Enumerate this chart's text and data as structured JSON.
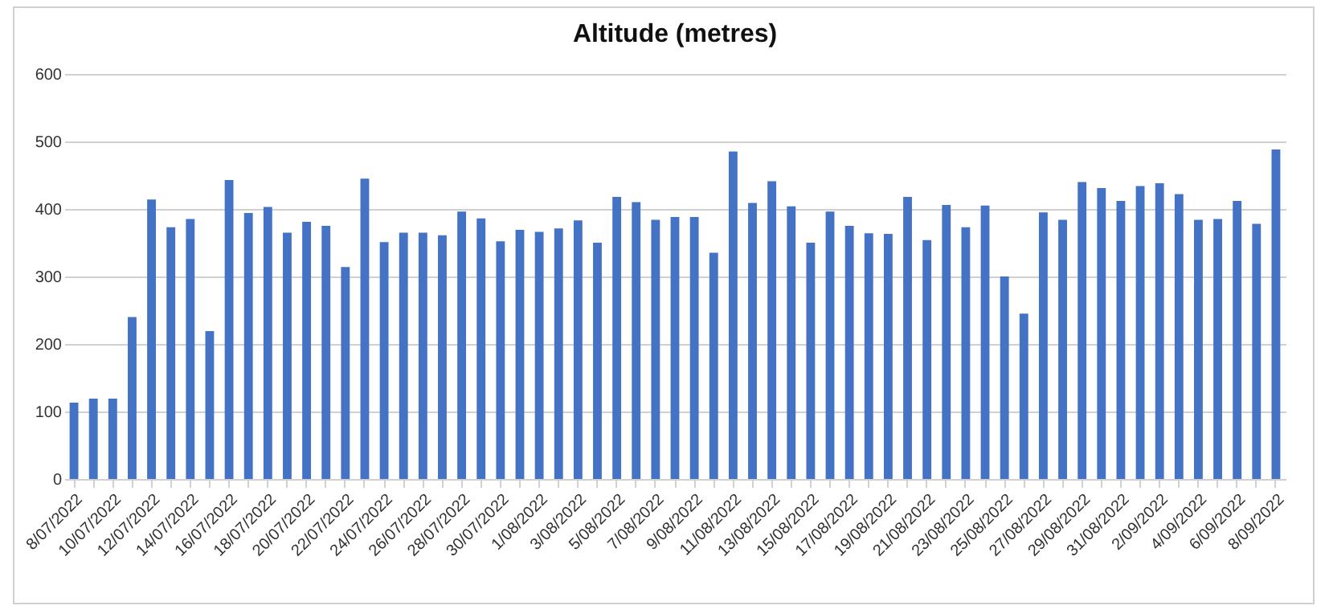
{
  "chart_data": {
    "type": "bar",
    "title": "Altitude (metres)",
    "categories": [
      "8/07/2022",
      null,
      "10/07/2022",
      null,
      "12/07/2022",
      null,
      "14/07/2022",
      null,
      "16/07/2022",
      null,
      "18/07/2022",
      null,
      "20/07/2022",
      null,
      "22/07/2022",
      null,
      "24/07/2022",
      null,
      "26/07/2022",
      null,
      "28/07/2022",
      null,
      "30/07/2022",
      null,
      "1/08/2022",
      null,
      "3/08/2022",
      null,
      "5/08/2022",
      null,
      "7/08/2022",
      null,
      "9/08/2022",
      null,
      "11/08/2022",
      null,
      "13/08/2022",
      null,
      "15/08/2022",
      null,
      "17/08/2022",
      null,
      "19/08/2022",
      null,
      "21/08/2022",
      null,
      "23/08/2022",
      null,
      "25/08/2022",
      null,
      "27/08/2022",
      null,
      "29/08/2022",
      null,
      "31/08/2022",
      null,
      "2/09/2022",
      null,
      "4/09/2022",
      null,
      "6/09/2022",
      null,
      "8/09/2022"
    ],
    "values": [
      113,
      119,
      119,
      240,
      414,
      373,
      385,
      219,
      443,
      394,
      403,
      365,
      381,
      375,
      314,
      445,
      351,
      365,
      365,
      361,
      396,
      386,
      352,
      369,
      366,
      371,
      383,
      350,
      418,
      410,
      384,
      388,
      388,
      335,
      485,
      409,
      441,
      404,
      350,
      396,
      375,
      364,
      363,
      418,
      354,
      406,
      373,
      405,
      300,
      245,
      395,
      384,
      440,
      431,
      412,
      434,
      438,
      422,
      384,
      385,
      412,
      378,
      488
    ],
    "color": "#4472c4",
    "ylim": [
      0,
      600
    ],
    "yticks": [
      0,
      100,
      200,
      300,
      400,
      500,
      600
    ],
    "grid": "y"
  }
}
